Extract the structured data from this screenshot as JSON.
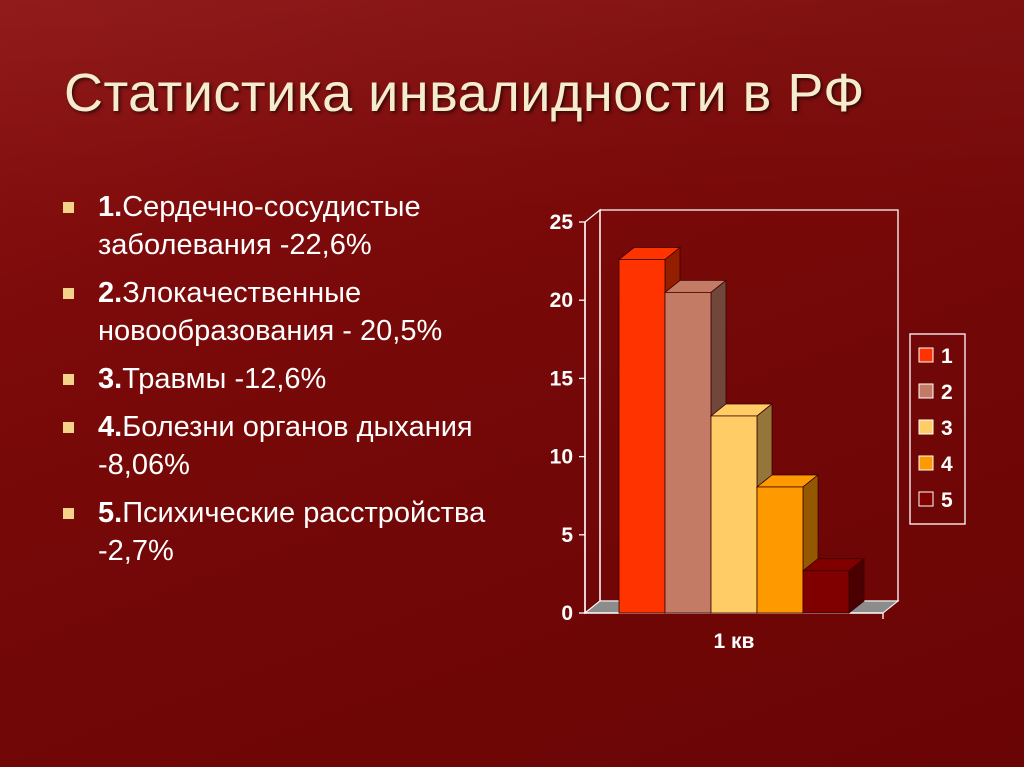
{
  "slide": {
    "title": "Статистика инвалидности в РФ",
    "bullets": [
      {
        "num": "1.",
        "text": "Сердечно-сосудистые заболевания -22,6%"
      },
      {
        "num": "2.",
        "text": "Злокачественные новообразования - 20,5%"
      },
      {
        "num": "3.",
        "text": "Травмы -12,6%"
      },
      {
        "num": "4.",
        "text": "Болезни органов дыхания -8,06%"
      },
      {
        "num": "5.",
        "text": "Психические расстройства -2,7%"
      }
    ]
  },
  "chart_data": {
    "type": "bar",
    "style": "3d-clustered-column",
    "categories": [
      "1 кв"
    ],
    "series": [
      {
        "name": "1",
        "values": [
          22.6
        ],
        "color": "#ff3300"
      },
      {
        "name": "2",
        "values": [
          20.5
        ],
        "color": "#c47b65"
      },
      {
        "name": "3",
        "values": [
          12.6
        ],
        "color": "#ffcc66"
      },
      {
        "name": "4",
        "values": [
          8.06
        ],
        "color": "#ff9900"
      },
      {
        "name": "5",
        "values": [
          2.7
        ],
        "color": "#800000"
      }
    ],
    "ylim": [
      0,
      25
    ],
    "yticks": [
      "0",
      "5",
      "10",
      "15",
      "20",
      "25"
    ],
    "legend": "right",
    "grid": false
  },
  "colors": {
    "background": "#7c0a0a",
    "title_text": "#f5eccd",
    "bullet_marker": "#f3d28a",
    "body_text": "#ffffff"
  }
}
